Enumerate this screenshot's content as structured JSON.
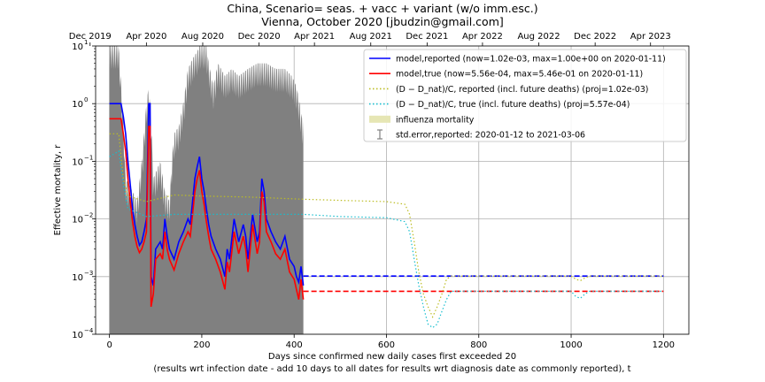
{
  "figure": {
    "title_line1": "China, Scenario= seas. + vacc + variant (w/o imm.esc.)",
    "title_line2": "Vienna, October 2020 [jbudzin@gmail.com]"
  },
  "chart_data": {
    "type": "line",
    "title": "China, Scenario= seas. + vacc + variant (w/o imm.esc.)",
    "subtitle": "Vienna, October 2020 [jbudzin@gmail.com]",
    "xlabel_line1": "Days since confirmed new daily cases first exceeded 20",
    "xlabel_line2": "(results wrt infection date - add 10 days to all dates for results wrt diagnosis date as commonly reported), t",
    "ylabel": "Effective mortality, r",
    "xlim": [
      -30,
      1255
    ],
    "ylim": [
      0.0001,
      10
    ],
    "yscale": "log",
    "grid": true,
    "x_ticks": [
      0,
      200,
      400,
      600,
      800,
      1000,
      1200
    ],
    "y_ticks": [
      {
        "value": 0.0001,
        "base": "10",
        "exp": "−4"
      },
      {
        "value": 0.001,
        "base": "10",
        "exp": "−3"
      },
      {
        "value": 0.01,
        "base": "10",
        "exp": "−2"
      },
      {
        "value": 0.1,
        "base": "10",
        "exp": "−1"
      },
      {
        "value": 1,
        "base": "10",
        "exp": "0"
      },
      {
        "value": 10,
        "base": "10",
        "exp": "1"
      }
    ],
    "top_axis_ticks": [
      {
        "day": -42,
        "label": "Dec 2019"
      },
      {
        "day": 80,
        "label": "Apr 2020"
      },
      {
        "day": 202,
        "label": "Aug 2020"
      },
      {
        "day": 324,
        "label": "Dec 2020"
      },
      {
        "day": 444,
        "label": "Apr 2021"
      },
      {
        "day": 566,
        "label": "Aug 2021"
      },
      {
        "day": 688,
        "label": "Dec 2021"
      },
      {
        "day": 808,
        "label": "Apr 2022"
      },
      {
        "day": 930,
        "label": "Aug 2022"
      },
      {
        "day": 1052,
        "label": "Dec 2022"
      },
      {
        "day": 1172,
        "label": "Apr 2023"
      }
    ],
    "legend_position": "top-right",
    "legend": [
      {
        "key": "reported",
        "label": "model,reported (now=1.02e-03, max=1.00e+00 on 2020-01-11)",
        "color": "#0000ff",
        "style": "solid"
      },
      {
        "key": "true",
        "label": "model,true (now=5.56e-04, max=5.46e-01 on 2020-01-11)",
        "color": "#ff0000",
        "style": "solid"
      },
      {
        "key": "d_reported",
        "label": "(D − D_nat)/C, reported (incl. future deaths) (proj=1.02e-03)",
        "color": "#bcbd22",
        "style": "dotted"
      },
      {
        "key": "d_true",
        "label": "(D − D_nat)/C, true (incl. future deaths) (proj=5.57e-04)",
        "color": "#17becf",
        "style": "dotted"
      },
      {
        "key": "influenza",
        "label": "influenza mortality",
        "color": "#e6e6b4",
        "style": "band"
      },
      {
        "key": "stderr",
        "label": "std.error,reported: 2020-01-12 to 2021-03-06",
        "color": "#808080",
        "style": "errorbar"
      }
    ],
    "influenza_band": [
      0.001,
      0.002
    ],
    "series": [
      {
        "name": "model,reported",
        "color": "#0000ff",
        "style": "solid",
        "points": [
          [
            0,
            1.0
          ],
          [
            25,
            1.0
          ],
          [
            30,
            0.6
          ],
          [
            35,
            0.3
          ],
          [
            40,
            0.1
          ],
          [
            45,
            0.04
          ],
          [
            50,
            0.015
          ],
          [
            55,
            0.008
          ],
          [
            60,
            0.005
          ],
          [
            65,
            0.0035
          ],
          [
            70,
            0.004
          ],
          [
            75,
            0.006
          ],
          [
            80,
            0.01
          ],
          [
            85,
            1.0
          ],
          [
            88,
            1.0
          ],
          [
            90,
            0.001
          ],
          [
            95,
            0.0007
          ],
          [
            100,
            0.003
          ],
          [
            110,
            0.004
          ],
          [
            115,
            0.003
          ],
          [
            120,
            0.01
          ],
          [
            125,
            0.005
          ],
          [
            130,
            0.003
          ],
          [
            140,
            0.002
          ],
          [
            150,
            0.004
          ],
          [
            160,
            0.006
          ],
          [
            170,
            0.01
          ],
          [
            175,
            0.008
          ],
          [
            180,
            0.02
          ],
          [
            185,
            0.05
          ],
          [
            190,
            0.08
          ],
          [
            195,
            0.12
          ],
          [
            200,
            0.05
          ],
          [
            205,
            0.03
          ],
          [
            210,
            0.015
          ],
          [
            215,
            0.008
          ],
          [
            220,
            0.005
          ],
          [
            230,
            0.003
          ],
          [
            240,
            0.002
          ],
          [
            250,
            0.001
          ],
          [
            255,
            0.003
          ],
          [
            260,
            0.002
          ],
          [
            270,
            0.01
          ],
          [
            280,
            0.004
          ],
          [
            290,
            0.008
          ],
          [
            295,
            0.005
          ],
          [
            300,
            0.002
          ],
          [
            310,
            0.012
          ],
          [
            320,
            0.004
          ],
          [
            325,
            0.006
          ],
          [
            330,
            0.05
          ],
          [
            335,
            0.03
          ],
          [
            340,
            0.01
          ],
          [
            350,
            0.006
          ],
          [
            360,
            0.004
          ],
          [
            370,
            0.003
          ],
          [
            380,
            0.005
          ],
          [
            390,
            0.002
          ],
          [
            400,
            0.0015
          ],
          [
            405,
            0.001
          ],
          [
            410,
            0.0008
          ],
          [
            415,
            0.0015
          ],
          [
            420,
            0.0007
          ]
        ]
      },
      {
        "name": "model,true",
        "color": "#ff0000",
        "style": "solid",
        "points": [
          [
            0,
            0.546
          ],
          [
            25,
            0.546
          ],
          [
            30,
            0.3
          ],
          [
            35,
            0.15
          ],
          [
            40,
            0.05
          ],
          [
            45,
            0.02
          ],
          [
            50,
            0.009
          ],
          [
            55,
            0.005
          ],
          [
            60,
            0.0033
          ],
          [
            65,
            0.0026
          ],
          [
            70,
            0.003
          ],
          [
            75,
            0.004
          ],
          [
            80,
            0.006
          ],
          [
            85,
            0.4
          ],
          [
            88,
            0.4
          ],
          [
            90,
            0.0003
          ],
          [
            95,
            0.0005
          ],
          [
            100,
            0.002
          ],
          [
            110,
            0.0025
          ],
          [
            115,
            0.002
          ],
          [
            120,
            0.006
          ],
          [
            125,
            0.003
          ],
          [
            130,
            0.002
          ],
          [
            140,
            0.0013
          ],
          [
            150,
            0.0025
          ],
          [
            160,
            0.004
          ],
          [
            170,
            0.006
          ],
          [
            175,
            0.005
          ],
          [
            180,
            0.012
          ],
          [
            185,
            0.03
          ],
          [
            190,
            0.05
          ],
          [
            195,
            0.07
          ],
          [
            200,
            0.03
          ],
          [
            205,
            0.018
          ],
          [
            210,
            0.009
          ],
          [
            215,
            0.005
          ],
          [
            220,
            0.003
          ],
          [
            230,
            0.002
          ],
          [
            240,
            0.0012
          ],
          [
            250,
            0.0006
          ],
          [
            255,
            0.0018
          ],
          [
            260,
            0.0012
          ],
          [
            270,
            0.006
          ],
          [
            280,
            0.0025
          ],
          [
            290,
            0.005
          ],
          [
            295,
            0.003
          ],
          [
            300,
            0.0012
          ],
          [
            310,
            0.008
          ],
          [
            320,
            0.0025
          ],
          [
            325,
            0.004
          ],
          [
            330,
            0.03
          ],
          [
            335,
            0.02
          ],
          [
            340,
            0.006
          ],
          [
            350,
            0.004
          ],
          [
            360,
            0.0025
          ],
          [
            370,
            0.002
          ],
          [
            380,
            0.003
          ],
          [
            390,
            0.0012
          ],
          [
            400,
            0.0009
          ],
          [
            405,
            0.0006
          ],
          [
            410,
            0.0004
          ],
          [
            415,
            0.0009
          ],
          [
            420,
            0.0004
          ]
        ]
      },
      {
        "name": "model,reported",
        "color": "#0000ff",
        "style": "dashed",
        "points": [
          [
            420,
            0.00102
          ],
          [
            1200,
            0.00102
          ]
        ]
      },
      {
        "name": "model,true",
        "color": "#ff0000",
        "style": "dashed",
        "points": [
          [
            420,
            0.000556
          ],
          [
            1200,
            0.000556
          ]
        ]
      },
      {
        "name": "(D − D_nat)/C, reported",
        "color": "#bcbd22",
        "style": "dotted",
        "points": [
          [
            0,
            0.3
          ],
          [
            20,
            0.3
          ],
          [
            30,
            0.05
          ],
          [
            40,
            0.025
          ],
          [
            80,
            0.02
          ],
          [
            140,
            0.026
          ],
          [
            200,
            0.025
          ],
          [
            300,
            0.024
          ],
          [
            420,
            0.022
          ],
          [
            500,
            0.021
          ],
          [
            600,
            0.02
          ],
          [
            640,
            0.018
          ],
          [
            650,
            0.012
          ],
          [
            660,
            0.004
          ],
          [
            670,
            0.0012
          ],
          [
            680,
            0.0005
          ],
          [
            690,
            0.0003
          ],
          [
            700,
            0.0002
          ],
          [
            710,
            0.0003
          ],
          [
            720,
            0.0005
          ],
          [
            730,
            0.0009
          ],
          [
            740,
            0.00102
          ],
          [
            1000,
            0.00102
          ],
          [
            1010,
            0.0009
          ],
          [
            1020,
            0.00085
          ],
          [
            1030,
            0.00095
          ],
          [
            1040,
            0.00102
          ],
          [
            1200,
            0.00102
          ]
        ]
      },
      {
        "name": "(D − D_nat)/C, true",
        "color": "#17becf",
        "style": "dotted",
        "points": [
          [
            0,
            0.12
          ],
          [
            20,
            0.15
          ],
          [
            30,
            0.04
          ],
          [
            40,
            0.015
          ],
          [
            80,
            0.011
          ],
          [
            140,
            0.012
          ],
          [
            200,
            0.012
          ],
          [
            300,
            0.012
          ],
          [
            420,
            0.012
          ],
          [
            500,
            0.011
          ],
          [
            600,
            0.0105
          ],
          [
            640,
            0.009
          ],
          [
            650,
            0.006
          ],
          [
            660,
            0.002
          ],
          [
            670,
            0.0007
          ],
          [
            680,
            0.0003
          ],
          [
            690,
            0.00015
          ],
          [
            700,
            0.00013
          ],
          [
            710,
            0.00015
          ],
          [
            720,
            0.00025
          ],
          [
            730,
            0.0004
          ],
          [
            740,
            0.000557
          ],
          [
            1000,
            0.000557
          ],
          [
            1010,
            0.00045
          ],
          [
            1020,
            0.00042
          ],
          [
            1030,
            0.0005
          ],
          [
            1040,
            0.000557
          ],
          [
            1200,
            0.000557
          ]
        ]
      }
    ],
    "stderr_profile": [
      [
        0,
        10
      ],
      [
        20,
        10
      ],
      [
        30,
        0.5
      ],
      [
        35,
        0.05
      ],
      [
        50,
        0.03
      ],
      [
        60,
        0.02
      ],
      [
        70,
        0.1
      ],
      [
        80,
        1
      ],
      [
        85,
        2
      ],
      [
        90,
        0.6
      ],
      [
        95,
        0.05
      ],
      [
        110,
        0.1
      ],
      [
        120,
        0.03
      ],
      [
        130,
        0.02
      ],
      [
        135,
        0.1
      ],
      [
        140,
        0.3
      ],
      [
        150,
        0.4
      ],
      [
        160,
        1
      ],
      [
        170,
        4
      ],
      [
        180,
        6
      ],
      [
        190,
        8
      ],
      [
        195,
        10
      ],
      [
        210,
        10
      ],
      [
        215,
        5
      ],
      [
        225,
        2
      ],
      [
        235,
        5
      ],
      [
        250,
        3
      ],
      [
        265,
        4
      ],
      [
        280,
        3
      ],
      [
        300,
        4
      ],
      [
        320,
        5
      ],
      [
        340,
        5
      ],
      [
        360,
        4
      ],
      [
        380,
        4
      ],
      [
        395,
        3
      ],
      [
        405,
        2
      ],
      [
        412,
        1
      ],
      [
        418,
        0.5
      ],
      [
        420,
        0.5
      ]
    ]
  }
}
